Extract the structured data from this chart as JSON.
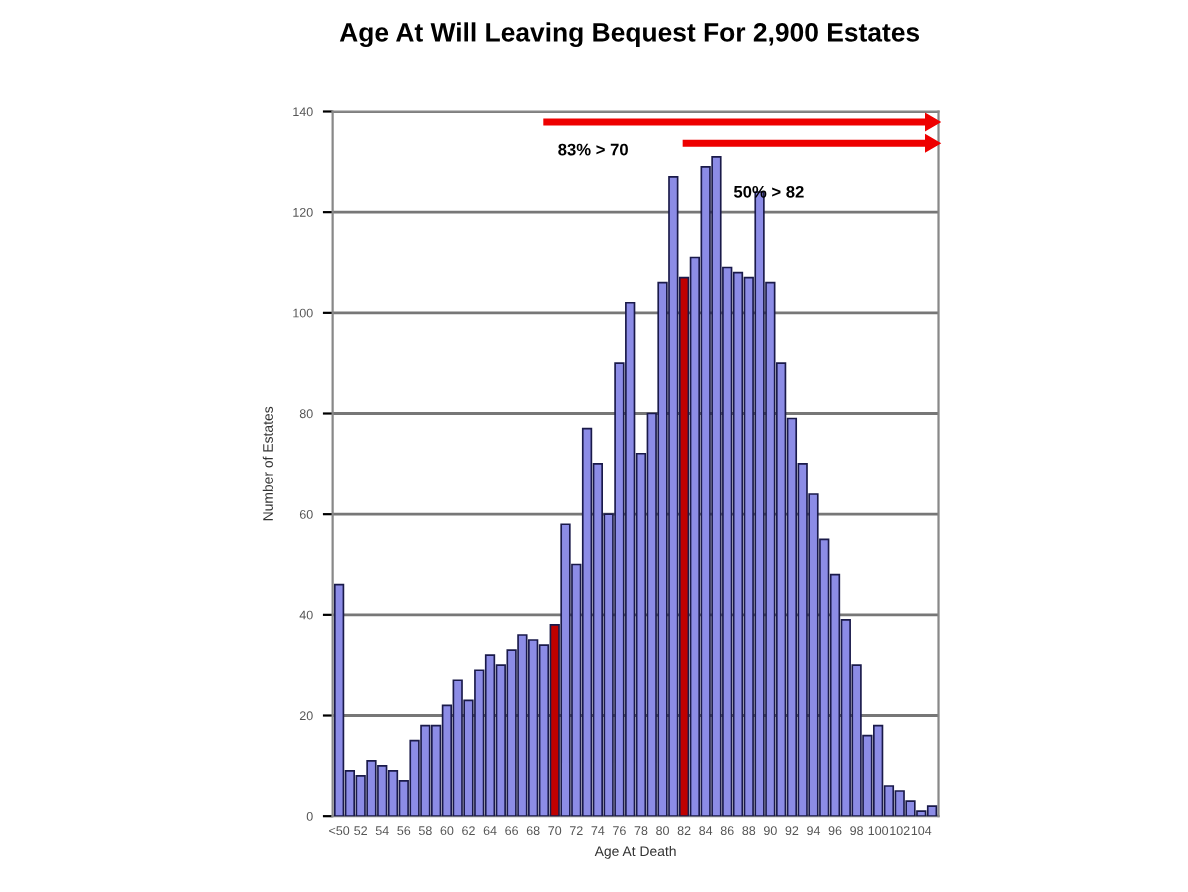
{
  "chart_data": {
    "type": "bar",
    "title": "Age At Will Leaving Bequest For 2,900 Estates",
    "xlabel": "Age At Death",
    "ylabel": "Number of Estates",
    "categories": [
      "<50",
      null,
      "52",
      null,
      "54",
      null,
      "56",
      null,
      "58",
      null,
      "60",
      null,
      "62",
      null,
      "64",
      null,
      "66",
      null,
      "68",
      null,
      "70",
      null,
      "72",
      null,
      "74",
      null,
      "76",
      null,
      "78",
      null,
      "80",
      null,
      "82",
      null,
      "84",
      null,
      "86",
      null,
      "88",
      null,
      "90",
      null,
      "92",
      null,
      "94",
      null,
      "96",
      null,
      "98",
      null,
      "100",
      null,
      "102",
      null,
      "104",
      null
    ],
    "values": [
      46,
      9,
      8,
      11,
      10,
      9,
      7,
      15,
      18,
      18,
      22,
      27,
      23,
      29,
      32,
      30,
      33,
      36,
      35,
      34,
      38,
      58,
      50,
      77,
      70,
      60,
      90,
      102,
      72,
      80,
      106,
      127,
      107,
      111,
      129,
      131,
      109,
      108,
      107,
      124,
      106,
      90,
      79,
      70,
      64,
      55,
      48,
      39,
      30,
      16,
      18,
      6,
      5,
      3,
      1,
      2
    ],
    "colors": [
      "#8c8ce6",
      "#8c8ce6",
      "#8c8ce6",
      "#8c8ce6",
      "#8c8ce6",
      "#8c8ce6",
      "#8c8ce6",
      "#8c8ce6",
      "#8c8ce6",
      "#8c8ce6",
      "#8c8ce6",
      "#8c8ce6",
      "#8c8ce6",
      "#8c8ce6",
      "#8c8ce6",
      "#8c8ce6",
      "#8c8ce6",
      "#8c8ce6",
      "#8c8ce6",
      "#8c8ce6",
      "#c00000",
      "#8c8ce6",
      "#8c8ce6",
      "#8c8ce6",
      "#8c8ce6",
      "#8c8ce6",
      "#8c8ce6",
      "#8c8ce6",
      "#8c8ce6",
      "#8c8ce6",
      "#8c8ce6",
      "#8c8ce6",
      "#c00000",
      "#8c8ce6",
      "#8c8ce6",
      "#8c8ce6",
      "#8c8ce6",
      "#8c8ce6",
      "#8c8ce6",
      "#8c8ce6",
      "#8c8ce6",
      "#8c8ce6",
      "#8c8ce6",
      "#8c8ce6",
      "#8c8ce6",
      "#8c8ce6",
      "#8c8ce6",
      "#8c8ce6",
      "#8c8ce6",
      "#8c8ce6",
      "#8c8ce6",
      "#8c8ce6",
      "#8c8ce6",
      "#8c8ce6",
      "#8c8ce6",
      "#8c8ce6"
    ],
    "ylim": [
      0,
      140
    ],
    "yticks": [
      0,
      20,
      40,
      60,
      80,
      100,
      120,
      140
    ],
    "grid": "y",
    "annotations": [
      "83% > 70",
      "50% > 82"
    ]
  }
}
